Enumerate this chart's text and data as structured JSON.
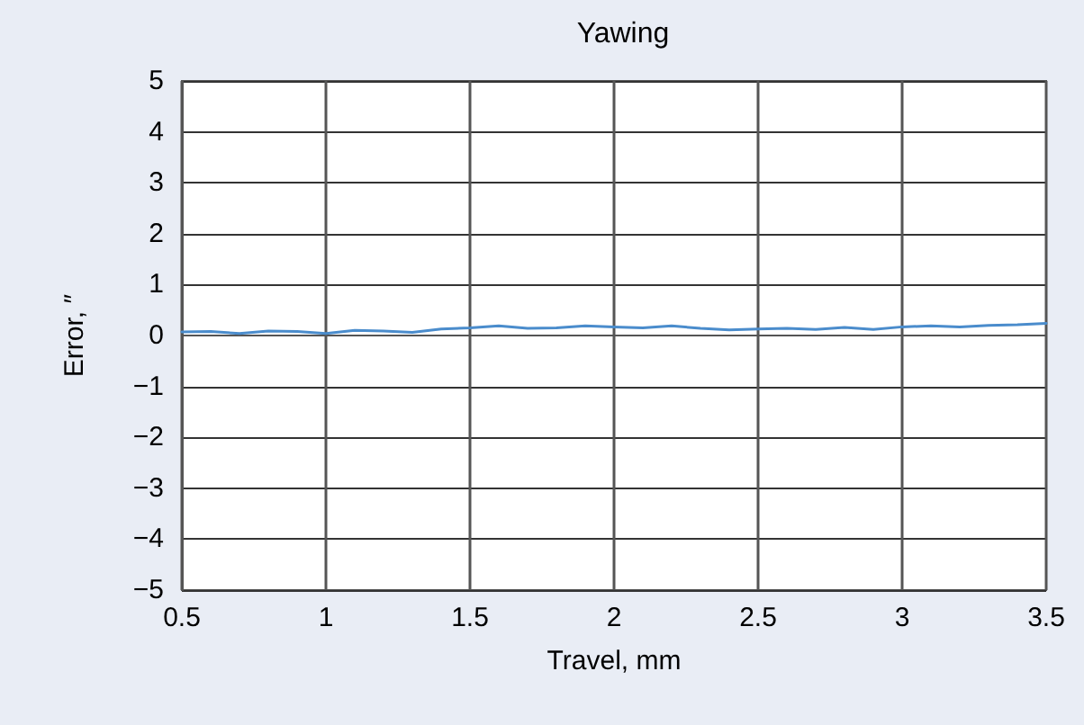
{
  "chart_data": {
    "type": "line",
    "title": "Yawing",
    "xlabel": "Travel, mm",
    "ylabel": "Error, ″",
    "x": [
      0.5,
      0.6,
      0.7,
      0.8,
      0.9,
      1.0,
      1.1,
      1.2,
      1.3,
      1.4,
      1.5,
      1.6,
      1.7,
      1.8,
      1.9,
      2.0,
      2.1,
      2.2,
      2.3,
      2.4,
      2.5,
      2.6,
      2.7,
      2.8,
      2.9,
      3.0,
      3.1,
      3.2,
      3.3,
      3.4,
      3.5
    ],
    "series": [
      {
        "color": "#4a8ccc",
        "values": [
          0.07,
          0.08,
          0.04,
          0.09,
          0.08,
          0.04,
          0.1,
          0.09,
          0.06,
          0.13,
          0.15,
          0.19,
          0.14,
          0.15,
          0.19,
          0.17,
          0.15,
          0.19,
          0.14,
          0.11,
          0.13,
          0.14,
          0.12,
          0.16,
          0.12,
          0.17,
          0.19,
          0.17,
          0.2,
          0.21,
          0.24
        ]
      }
    ],
    "xlim": [
      0.5,
      3.5
    ],
    "xticks": [
      0.5,
      1,
      1.5,
      2,
      2.5,
      3,
      3.5
    ],
    "ylim": [
      -5,
      5
    ],
    "yticks": [
      {
        "value": -5,
        "label": "−5"
      },
      {
        "value": -4,
        "label": "−4"
      },
      {
        "value": -3,
        "label": "−3"
      },
      {
        "value": -2,
        "label": "−2"
      },
      {
        "value": -1,
        "label": "−1"
      },
      0,
      1,
      2,
      3,
      4,
      5
    ],
    "grid": true,
    "marker": "none",
    "line_style": "solid"
  }
}
